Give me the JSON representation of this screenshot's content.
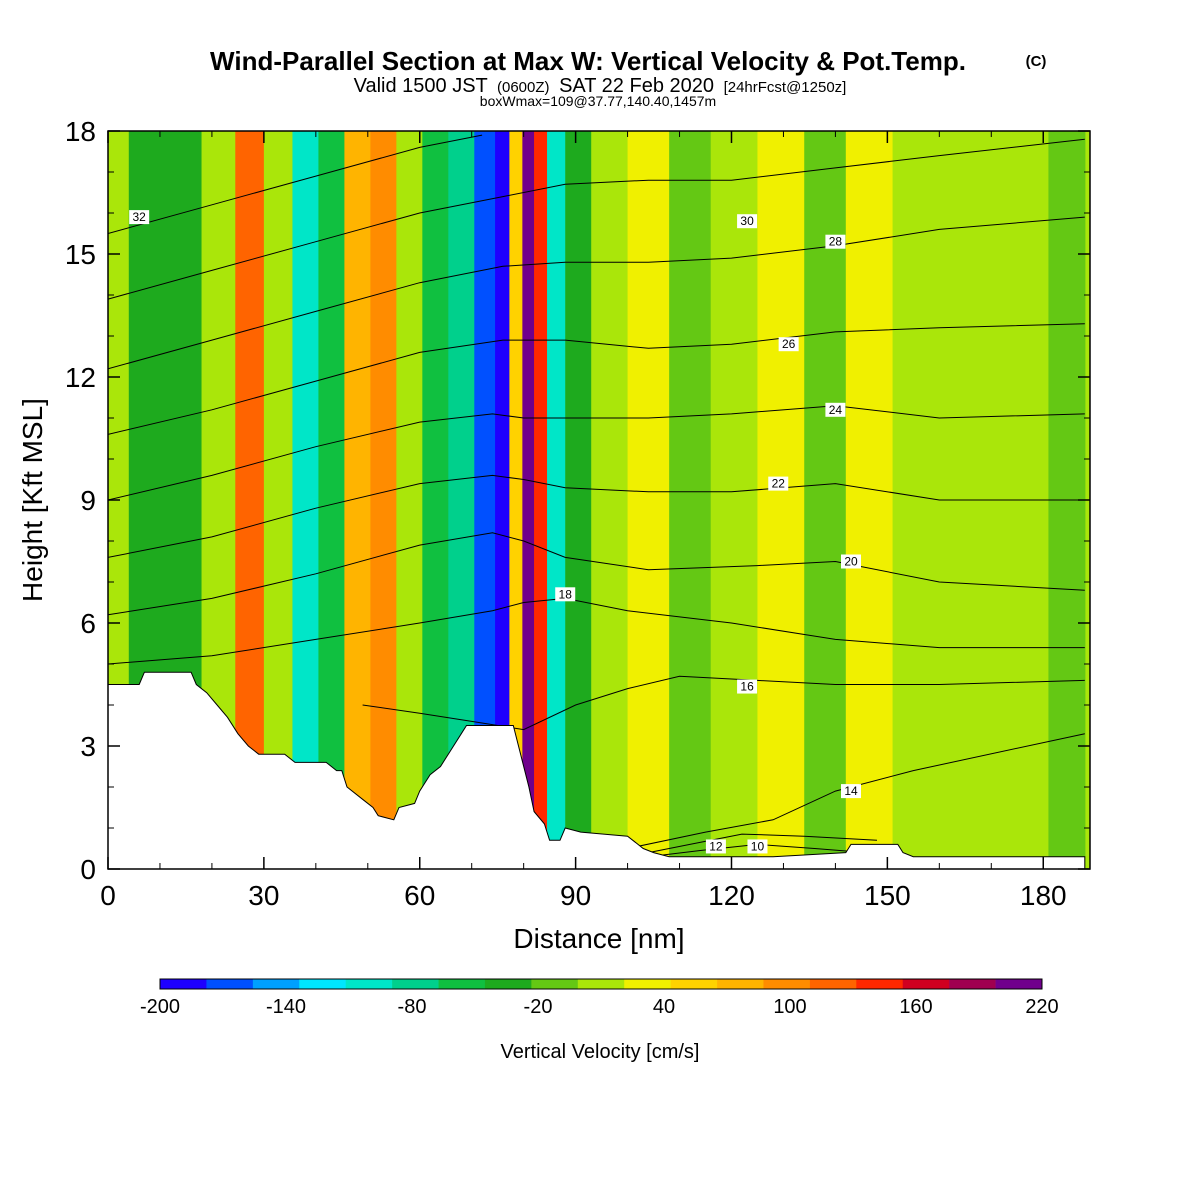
{
  "header": {
    "title": "Wind-Parallel Section at Max W: Vertical Velocity & Pot.Temp.",
    "copyright": "(C)",
    "valid_prefix": "Valid 1500 JST",
    "valid_utc": "(0600Z)",
    "valid_date": "SAT 22 Feb 2020",
    "forecast": "[24hrFcst@1250z]",
    "box_info": "boxWmax=109@37.77,140.40,1457m"
  },
  "chart_data": {
    "type": "heatmap",
    "xlabel": "Distance [nm]",
    "ylabel": "Height [Kft MSL]",
    "xlim": [
      0,
      189
    ],
    "ylim": [
      0,
      18
    ],
    "x_ticks": [
      "0",
      "30",
      "60",
      "90",
      "120",
      "150",
      "180"
    ],
    "y_ticks": [
      "0",
      "3",
      "6",
      "9",
      "12",
      "15",
      "18"
    ],
    "colorbar": {
      "label": "Vertical Velocity [cm/s]",
      "tick_labels": [
        "-200",
        "-140",
        "-80",
        "-20",
        "40",
        "100",
        "160",
        "220"
      ],
      "colors": [
        "#1e00ff",
        "#0050ff",
        "#00a0ff",
        "#00e6ff",
        "#00e6c8",
        "#00d08c",
        "#10c040",
        "#1eaa1e",
        "#64c814",
        "#aae60a",
        "#f0f000",
        "#ffd200",
        "#ffb400",
        "#ff8c00",
        "#ff6400",
        "#ff2800",
        "#d00020",
        "#a00050",
        "#70008c"
      ]
    },
    "velocity_columns": [
      {
        "x": 6,
        "w": -40
      },
      {
        "x": 14,
        "w": -30
      },
      {
        "x": 22,
        "w": 20
      },
      {
        "x": 27,
        "w": 110
      },
      {
        "x": 33,
        "w": 10
      },
      {
        "x": 38,
        "w": -90
      },
      {
        "x": 43,
        "w": -60
      },
      {
        "x": 48,
        "w": 70
      },
      {
        "x": 53,
        "w": 100
      },
      {
        "x": 58,
        "w": 0
      },
      {
        "x": 63,
        "w": -50
      },
      {
        "x": 68,
        "w": -70
      },
      {
        "x": 73,
        "w": -160
      },
      {
        "x": 76,
        "w": -200
      },
      {
        "x": 78.5,
        "w": 60
      },
      {
        "x": 81,
        "w": 210
      },
      {
        "x": 83,
        "w": 150
      },
      {
        "x": 86,
        "w": -100
      },
      {
        "x": 90,
        "w": -40
      },
      {
        "x": 96,
        "w": 20
      },
      {
        "x": 104,
        "w": 30
      },
      {
        "x": 112,
        "w": -10
      },
      {
        "x": 120,
        "w": 0
      },
      {
        "x": 130,
        "w": 30
      },
      {
        "x": 138,
        "w": -20
      },
      {
        "x": 146,
        "w": 40
      },
      {
        "x": 156,
        "w": 10
      },
      {
        "x": 166,
        "w": 20
      },
      {
        "x": 176,
        "w": 0
      },
      {
        "x": 186,
        "w": -10
      }
    ],
    "terrain_profile": [
      [
        0,
        4.5
      ],
      [
        6,
        4.5
      ],
      [
        7,
        4.8
      ],
      [
        16,
        4.8
      ],
      [
        17,
        4.5
      ],
      [
        19,
        4.3
      ],
      [
        21,
        4.0
      ],
      [
        23,
        3.7
      ],
      [
        25,
        3.3
      ],
      [
        27,
        3.0
      ],
      [
        29,
        2.8
      ],
      [
        34,
        2.8
      ],
      [
        36,
        2.6
      ],
      [
        42,
        2.6
      ],
      [
        44,
        2.4
      ],
      [
        45,
        2.4
      ],
      [
        46,
        2.0
      ],
      [
        49,
        1.7
      ],
      [
        51,
        1.5
      ],
      [
        52,
        1.3
      ],
      [
        55,
        1.2
      ],
      [
        56,
        1.5
      ],
      [
        59,
        1.6
      ],
      [
        60,
        1.9
      ],
      [
        62,
        2.3
      ],
      [
        64,
        2.5
      ],
      [
        66,
        2.9
      ],
      [
        68,
        3.3
      ],
      [
        69,
        3.5
      ],
      [
        78,
        3.5
      ],
      [
        79,
        3.0
      ],
      [
        81,
        2.0
      ],
      [
        82,
        1.4
      ],
      [
        84,
        1.1
      ],
      [
        85,
        0.7
      ],
      [
        87,
        0.7
      ],
      [
        88,
        1.0
      ],
      [
        91,
        0.9
      ],
      [
        100,
        0.8
      ],
      [
        102,
        0.6
      ],
      [
        103,
        0.5
      ],
      [
        105,
        0.4
      ],
      [
        108,
        0.3
      ],
      [
        128,
        0.3
      ],
      [
        142,
        0.4
      ],
      [
        143,
        0.6
      ],
      [
        152,
        0.6
      ],
      [
        153,
        0.4
      ],
      [
        155,
        0.3
      ],
      [
        188,
        0.3
      ]
    ],
    "isentropes": [
      {
        "label": "10",
        "pts": [
          [
            104,
            0.3
          ],
          [
            114,
            0.45
          ],
          [
            125,
            0.6
          ],
          [
            136,
            0.5
          ],
          [
            146,
            0.4
          ]
        ],
        "label_at": [
          125,
          0.55
        ]
      },
      {
        "label": "12",
        "pts": [
          [
            104,
            0.4
          ],
          [
            112,
            0.6
          ],
          [
            122,
            0.85
          ],
          [
            134,
            0.8
          ],
          [
            148,
            0.7
          ]
        ],
        "label_at": [
          117,
          0.55
        ]
      },
      {
        "label": "14",
        "pts": [
          [
            100,
            0.5
          ],
          [
            115,
            0.9
          ],
          [
            128,
            1.2
          ],
          [
            140,
            1.9
          ],
          [
            155,
            2.4
          ],
          [
            188,
            3.3
          ]
        ],
        "label_at": [
          143,
          1.9
        ]
      },
      {
        "label": "16",
        "pts": [
          [
            49,
            4.0
          ],
          [
            60,
            3.8
          ],
          [
            70,
            3.6
          ],
          [
            80,
            3.4
          ],
          [
            90,
            4.0
          ],
          [
            100,
            4.4
          ],
          [
            110,
            4.7
          ],
          [
            125,
            4.6
          ],
          [
            140,
            4.5
          ],
          [
            160,
            4.5
          ],
          [
            188,
            4.6
          ]
        ],
        "label_at": [
          123,
          4.45
        ]
      },
      {
        "label": "18",
        "pts": [
          [
            0,
            5.0
          ],
          [
            20,
            5.2
          ],
          [
            40,
            5.6
          ],
          [
            60,
            6.0
          ],
          [
            74,
            6.3
          ],
          [
            80,
            6.5
          ],
          [
            88,
            6.6
          ],
          [
            100,
            6.3
          ],
          [
            120,
            6.0
          ],
          [
            140,
            5.6
          ],
          [
            160,
            5.4
          ],
          [
            188,
            5.4
          ]
        ],
        "label_at": [
          88,
          6.7
        ]
      },
      {
        "label": "20",
        "pts": [
          [
            0,
            6.2
          ],
          [
            20,
            6.6
          ],
          [
            40,
            7.2
          ],
          [
            60,
            7.9
          ],
          [
            74,
            8.2
          ],
          [
            80,
            8.0
          ],
          [
            88,
            7.6
          ],
          [
            104,
            7.3
          ],
          [
            125,
            7.4
          ],
          [
            140,
            7.5
          ],
          [
            160,
            7.0
          ],
          [
            188,
            6.8
          ]
        ],
        "label_at": [
          143,
          7.5
        ]
      },
      {
        "label": "22",
        "pts": [
          [
            0,
            7.6
          ],
          [
            20,
            8.1
          ],
          [
            40,
            8.8
          ],
          [
            60,
            9.4
          ],
          [
            74,
            9.6
          ],
          [
            80,
            9.5
          ],
          [
            88,
            9.3
          ],
          [
            104,
            9.2
          ],
          [
            120,
            9.2
          ],
          [
            140,
            9.4
          ],
          [
            160,
            9.0
          ],
          [
            188,
            9.0
          ]
        ],
        "label_at": [
          129,
          9.4
        ]
      },
      {
        "label": "24",
        "pts": [
          [
            0,
            9.0
          ],
          [
            20,
            9.6
          ],
          [
            40,
            10.3
          ],
          [
            60,
            10.9
          ],
          [
            74,
            11.1
          ],
          [
            80,
            11.0
          ],
          [
            88,
            11.0
          ],
          [
            104,
            11.0
          ],
          [
            120,
            11.1
          ],
          [
            140,
            11.3
          ],
          [
            160,
            11.0
          ],
          [
            188,
            11.1
          ]
        ],
        "label_at": [
          140,
          11.2
        ]
      },
      {
        "label": "26",
        "pts": [
          [
            0,
            10.6
          ],
          [
            20,
            11.2
          ],
          [
            40,
            11.9
          ],
          [
            60,
            12.6
          ],
          [
            76,
            12.9
          ],
          [
            88,
            12.9
          ],
          [
            104,
            12.7
          ],
          [
            120,
            12.8
          ],
          [
            140,
            13.1
          ],
          [
            160,
            13.2
          ],
          [
            188,
            13.3
          ]
        ],
        "label_at": [
          131,
          12.8
        ]
      },
      {
        "label": "28",
        "pts": [
          [
            0,
            12.2
          ],
          [
            20,
            12.9
          ],
          [
            40,
            13.6
          ],
          [
            60,
            14.3
          ],
          [
            76,
            14.7
          ],
          [
            88,
            14.8
          ],
          [
            104,
            14.8
          ],
          [
            120,
            14.9
          ],
          [
            140,
            15.2
          ],
          [
            160,
            15.6
          ],
          [
            188,
            15.9
          ]
        ],
        "label_at": [
          140,
          15.3
        ]
      },
      {
        "label": "30",
        "pts": [
          [
            0,
            13.9
          ],
          [
            20,
            14.6
          ],
          [
            40,
            15.3
          ],
          [
            60,
            16.0
          ],
          [
            76,
            16.4
          ],
          [
            88,
            16.7
          ],
          [
            104,
            16.8
          ],
          [
            120,
            16.8
          ],
          [
            140,
            17.1
          ],
          [
            160,
            17.4
          ],
          [
            188,
            17.8
          ]
        ],
        "label_at": [
          123,
          15.8
        ]
      },
      {
        "label": "32",
        "pts": [
          [
            0,
            15.5
          ],
          [
            20,
            16.2
          ],
          [
            40,
            16.9
          ],
          [
            60,
            17.6
          ],
          [
            72,
            17.9
          ]
        ],
        "label_at": [
          6,
          15.9
        ]
      }
    ]
  }
}
